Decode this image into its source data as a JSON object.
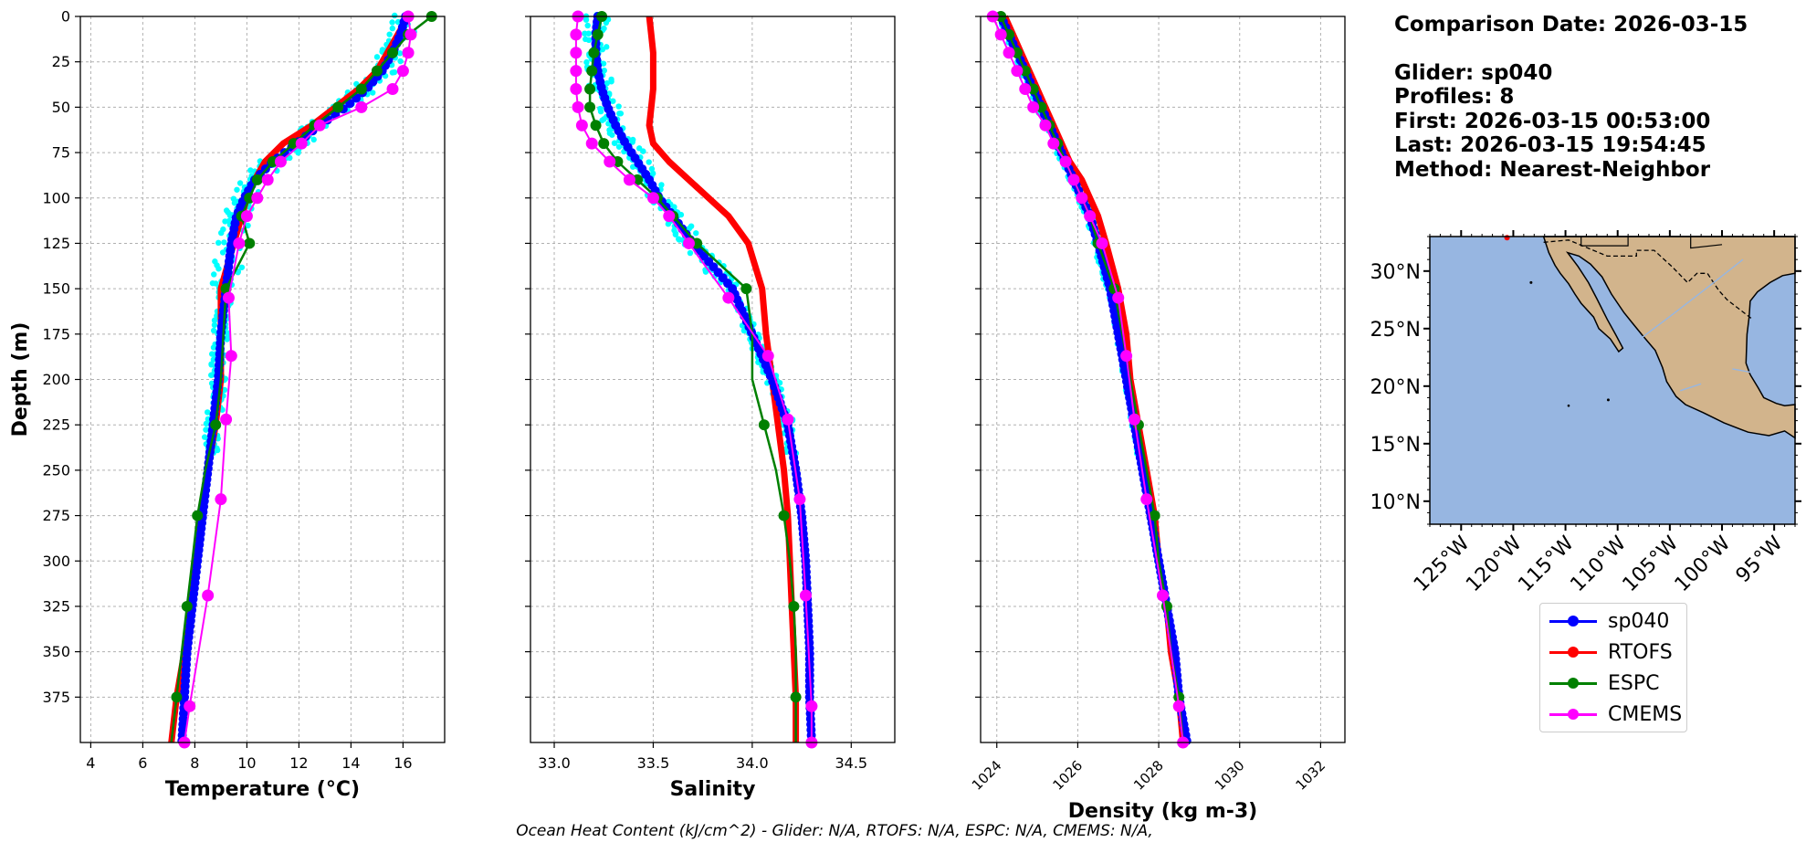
{
  "info": {
    "comparison_date": "Comparison Date: 2026-03-15",
    "glider": "Glider: sp040",
    "profiles": "Profiles: 8",
    "first": "First: 2026-03-15 00:53:00",
    "last": "Last: 2026-03-15 19:54:45",
    "method": "Method: Nearest-Neighbor"
  },
  "footer": "Ocean Heat Content (kJ/cm^2) - Glider: N/A,  RTOFS: N/A,  ESPC: N/A,  CMEMS: N/A,",
  "colors": {
    "sp040": "#0000ff",
    "RTOFS": "#ff0000",
    "ESPC": "#008000",
    "CMEMS": "#ff00ff",
    "glider_raw": "#00ffff",
    "ocean": "#97b6e1",
    "land": "#d2b48c"
  },
  "legend": [
    {
      "name": "sp040",
      "color": "#0000ff"
    },
    {
      "name": "RTOFS",
      "color": "#ff0000"
    },
    {
      "name": "ESPC",
      "color": "#008000"
    },
    {
      "name": "CMEMS",
      "color": "#ff00ff"
    }
  ],
  "chart_data": [
    {
      "type": "line",
      "xlabel": "Temperature (°C)",
      "ylabel": "Depth (m)",
      "xlim": [
        3.6,
        17.6
      ],
      "ylim": [
        400,
        0
      ],
      "xticks": [
        4,
        6,
        8,
        10,
        12,
        14,
        16
      ],
      "yticks": [
        0,
        25,
        50,
        75,
        100,
        125,
        150,
        175,
        200,
        225,
        250,
        275,
        300,
        325,
        350,
        375
      ],
      "grid": true,
      "series": [
        {
          "name": "sp040",
          "depth": [
            0,
            10,
            20,
            30,
            40,
            50,
            60,
            70,
            80,
            90,
            100,
            110,
            125,
            150,
            175,
            200,
            225,
            250,
            275,
            300,
            325,
            350,
            375,
            400
          ],
          "values": [
            16.1,
            15.9,
            15.6,
            15.2,
            14.6,
            13.8,
            12.8,
            11.9,
            11.0,
            10.3,
            9.9,
            9.6,
            9.4,
            9.2,
            9.0,
            8.9,
            8.7,
            8.5,
            8.3,
            8.1,
            7.9,
            7.7,
            7.6,
            7.5
          ]
        },
        {
          "name": "RTOFS",
          "depth": [
            0,
            10,
            20,
            30,
            40,
            50,
            60,
            70,
            80,
            90,
            100,
            110,
            125,
            150,
            175,
            200,
            225,
            250,
            275,
            300,
            325,
            350,
            375,
            400
          ],
          "values": [
            16.2,
            15.8,
            15.4,
            15.0,
            14.3,
            13.4,
            12.5,
            11.4,
            10.7,
            10.3,
            10.0,
            9.8,
            9.5,
            9.0,
            9.0,
            9.0,
            8.8,
            8.5,
            8.2,
            8.0,
            7.8,
            7.6,
            7.3,
            7.1
          ]
        },
        {
          "name": "ESPC",
          "depth": [
            0,
            10,
            20,
            30,
            40,
            50,
            60,
            70,
            80,
            90,
            100,
            110,
            125,
            150,
            175,
            200,
            225,
            250,
            275,
            300,
            325,
            350,
            375,
            400
          ],
          "values": [
            17.1,
            16.2,
            15.6,
            15.0,
            14.4,
            13.5,
            12.6,
            11.8,
            11.0,
            10.4,
            10.1,
            9.8,
            10.1,
            9.2,
            9.1,
            9.0,
            8.8,
            8.4,
            8.1,
            7.9,
            7.7,
            7.5,
            7.3,
            7.1
          ]
        },
        {
          "name": "CMEMS",
          "depth": [
            0,
            10,
            20,
            30,
            40,
            50,
            60,
            70,
            80,
            90,
            100,
            110,
            125,
            155,
            187,
            222,
            266,
            319,
            380,
            400
          ],
          "values": [
            16.2,
            16.3,
            16.2,
            16.0,
            15.6,
            14.4,
            12.8,
            12.1,
            11.3,
            10.8,
            10.4,
            10.0,
            9.7,
            9.3,
            9.4,
            9.2,
            9.0,
            8.5,
            7.8,
            7.6
          ]
        }
      ]
    },
    {
      "type": "line",
      "xlabel": "Salinity",
      "xlim": [
        32.88,
        34.72
      ],
      "ylim": [
        400,
        0
      ],
      "xticks": [
        33.0,
        33.5,
        34.0,
        34.5
      ],
      "grid": true,
      "series": [
        {
          "name": "sp040",
          "depth": [
            0,
            10,
            20,
            30,
            40,
            50,
            60,
            70,
            80,
            90,
            100,
            110,
            125,
            150,
            175,
            200,
            225,
            250,
            275,
            300,
            325,
            350,
            375,
            400
          ],
          "values": [
            33.22,
            33.21,
            33.21,
            33.22,
            33.24,
            33.27,
            33.31,
            33.36,
            33.42,
            33.48,
            33.53,
            33.6,
            33.7,
            33.9,
            34.0,
            34.1,
            34.18,
            34.22,
            34.25,
            34.27,
            34.28,
            34.29,
            34.29,
            34.3
          ]
        },
        {
          "name": "RTOFS",
          "depth": [
            0,
            10,
            20,
            30,
            40,
            50,
            60,
            70,
            80,
            90,
            100,
            110,
            125,
            150,
            175,
            200,
            225,
            250,
            275,
            300,
            325,
            350,
            375,
            400
          ],
          "values": [
            33.48,
            33.49,
            33.5,
            33.5,
            33.5,
            33.49,
            33.48,
            33.5,
            33.58,
            33.68,
            33.78,
            33.88,
            33.98,
            34.05,
            34.07,
            34.1,
            34.13,
            34.16,
            34.18,
            34.19,
            34.2,
            34.21,
            34.22,
            34.22
          ]
        },
        {
          "name": "ESPC",
          "depth": [
            0,
            10,
            20,
            30,
            40,
            50,
            60,
            70,
            80,
            90,
            100,
            110,
            125,
            150,
            175,
            200,
            225,
            250,
            275,
            300,
            325,
            350,
            375,
            400
          ],
          "values": [
            33.24,
            33.22,
            33.2,
            33.19,
            33.18,
            33.18,
            33.21,
            33.25,
            33.32,
            33.42,
            33.52,
            33.6,
            33.72,
            33.97,
            34.0,
            34.0,
            34.06,
            34.12,
            34.16,
            34.19,
            34.21,
            34.22,
            34.22,
            34.22
          ]
        },
        {
          "name": "CMEMS",
          "depth": [
            0,
            10,
            20,
            30,
            40,
            50,
            60,
            70,
            80,
            90,
            100,
            110,
            125,
            155,
            187,
            222,
            266,
            319,
            380,
            400
          ],
          "values": [
            33.12,
            33.11,
            33.11,
            33.11,
            33.11,
            33.12,
            33.14,
            33.19,
            33.28,
            33.38,
            33.5,
            33.58,
            33.68,
            33.88,
            34.08,
            34.18,
            34.24,
            34.27,
            34.3,
            34.3
          ]
        }
      ]
    },
    {
      "type": "line",
      "xlabel": "Density (kg m-3)",
      "xlim": [
        1023.6,
        1032.6
      ],
      "ylim": [
        400,
        0
      ],
      "xticks": [
        1024,
        1026,
        1028,
        1030,
        1032
      ],
      "grid": true,
      "series": [
        {
          "name": "sp040",
          "depth": [
            0,
            10,
            20,
            30,
            40,
            50,
            60,
            70,
            80,
            90,
            100,
            110,
            125,
            150,
            175,
            200,
            225,
            250,
            275,
            300,
            325,
            350,
            375,
            400
          ],
          "values": [
            1024.1,
            1024.3,
            1024.5,
            1024.7,
            1024.9,
            1025.1,
            1025.3,
            1025.5,
            1025.7,
            1025.9,
            1026.1,
            1026.3,
            1026.5,
            1026.8,
            1027.0,
            1027.2,
            1027.4,
            1027.6,
            1027.8,
            1028.0,
            1028.2,
            1028.4,
            1028.5,
            1028.7
          ]
        },
        {
          "name": "RTOFS",
          "depth": [
            0,
            10,
            20,
            30,
            40,
            50,
            60,
            70,
            80,
            90,
            100,
            110,
            125,
            150,
            175,
            200,
            225,
            250,
            275,
            300,
            325,
            350,
            375,
            400
          ],
          "values": [
            1024.2,
            1024.4,
            1024.6,
            1024.8,
            1025.0,
            1025.2,
            1025.4,
            1025.6,
            1025.8,
            1026.1,
            1026.3,
            1026.5,
            1026.7,
            1027.0,
            1027.2,
            1027.3,
            1027.5,
            1027.7,
            1027.9,
            1028.0,
            1028.2,
            1028.3,
            1028.5,
            1028.6
          ]
        },
        {
          "name": "ESPC",
          "depth": [
            0,
            10,
            20,
            30,
            40,
            50,
            60,
            70,
            80,
            90,
            100,
            110,
            125,
            150,
            175,
            200,
            225,
            250,
            275,
            300,
            325,
            350,
            375,
            400
          ],
          "values": [
            1024.1,
            1024.3,
            1024.5,
            1024.7,
            1024.9,
            1025.1,
            1025.3,
            1025.5,
            1025.7,
            1025.9,
            1026.1,
            1026.3,
            1026.5,
            1026.9,
            1027.1,
            1027.3,
            1027.5,
            1027.7,
            1027.9,
            1028.0,
            1028.2,
            1028.3,
            1028.5,
            1028.6
          ]
        },
        {
          "name": "CMEMS",
          "depth": [
            0,
            10,
            20,
            30,
            40,
            50,
            60,
            70,
            80,
            90,
            100,
            110,
            125,
            155,
            187,
            222,
            266,
            319,
            380,
            400
          ],
          "values": [
            1023.9,
            1024.1,
            1024.3,
            1024.5,
            1024.7,
            1024.9,
            1025.2,
            1025.4,
            1025.7,
            1025.9,
            1026.1,
            1026.3,
            1026.6,
            1027.0,
            1027.2,
            1027.4,
            1027.7,
            1028.1,
            1028.5,
            1028.6
          ]
        }
      ]
    }
  ],
  "map": {
    "lon_labels": [
      "125°W",
      "120°W",
      "115°W",
      "110°W",
      "105°W",
      "100°W",
      "95°W"
    ],
    "lat_labels": [
      "30°N",
      "25°N",
      "20°N",
      "15°N",
      "10°N"
    ]
  }
}
